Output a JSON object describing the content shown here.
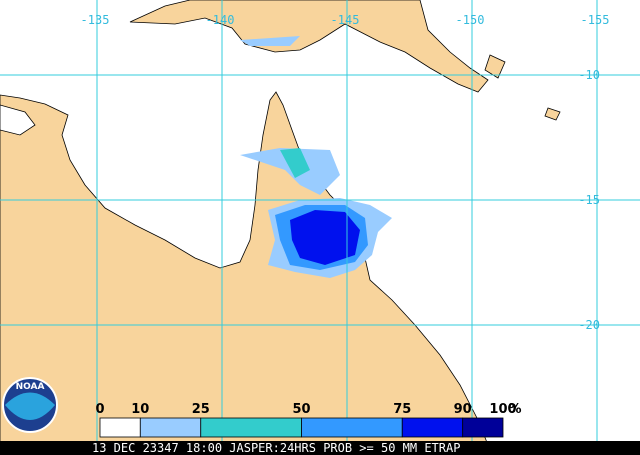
{
  "map": {
    "lon_labels": [
      -135,
      -140,
      -145,
      -150,
      -155
    ],
    "lat_labels": [
      -10,
      -15,
      -20
    ],
    "logo": "NOAA",
    "legend": {
      "labels": [
        0,
        10,
        25,
        50,
        75,
        90,
        100
      ],
      "unit": "%",
      "colors": [
        "#ffffff",
        "#99ccff",
        "#33cccc",
        "#3399ff",
        "#0011ee",
        "#000099"
      ]
    },
    "footer": "13 DEC 23347 18:00 JASPER:24HRS PROB >= 50 MM ETRAP"
  }
}
